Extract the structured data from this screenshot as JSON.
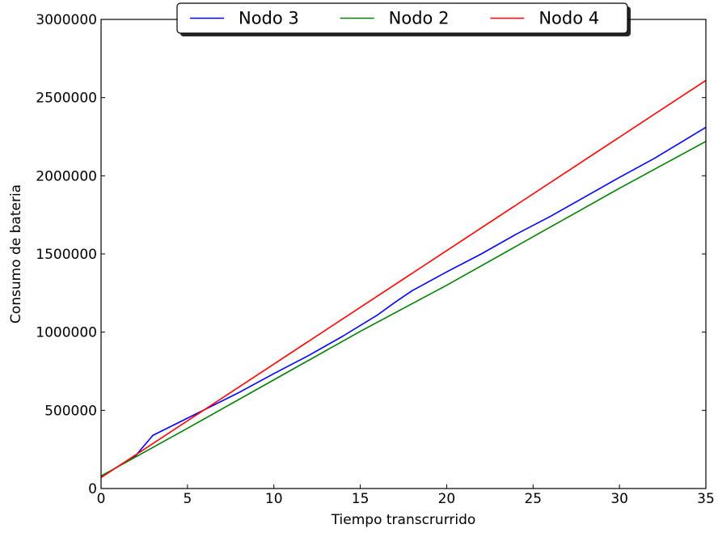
{
  "chart_data": {
    "type": "line",
    "title": "",
    "xlabel": "Tiempo transcrurrido",
    "ylabel": "Consumo de bateria",
    "xlim": [
      0,
      35
    ],
    "ylim": [
      0,
      3000000
    ],
    "x_ticks": [
      "0",
      "5",
      "10",
      "15",
      "20",
      "25",
      "30",
      "35"
    ],
    "y_ticks": [
      "0",
      "500000",
      "1000000",
      "1500000",
      "2000000",
      "2500000",
      "3000000"
    ],
    "grid": false,
    "legend_position": "top-center",
    "series": [
      {
        "name": "Nodo 3",
        "color": "#0000ff",
        "x": [
          0,
          2,
          3,
          5,
          8,
          10,
          12,
          14,
          16,
          17,
          18,
          20,
          22,
          24,
          26,
          28,
          30,
          32,
          35
        ],
        "y": [
          75000,
          210000,
          340000,
          450000,
          615000,
          735000,
          850000,
          975000,
          1110000,
          1190000,
          1265000,
          1385000,
          1500000,
          1625000,
          1740000,
          1865000,
          1990000,
          2110000,
          2310000
        ]
      },
      {
        "name": "Nodo 2",
        "color": "#008000",
        "x": [
          0,
          5,
          10,
          15,
          20,
          25,
          30,
          35
        ],
        "y": [
          80000,
          385000,
          695000,
          1005000,
          1300000,
          1610000,
          1920000,
          2220000
        ]
      },
      {
        "name": "Nodo 4",
        "color": "#ff0000",
        "x": [
          0,
          35
        ],
        "y": [
          70000,
          2610000
        ]
      }
    ]
  }
}
